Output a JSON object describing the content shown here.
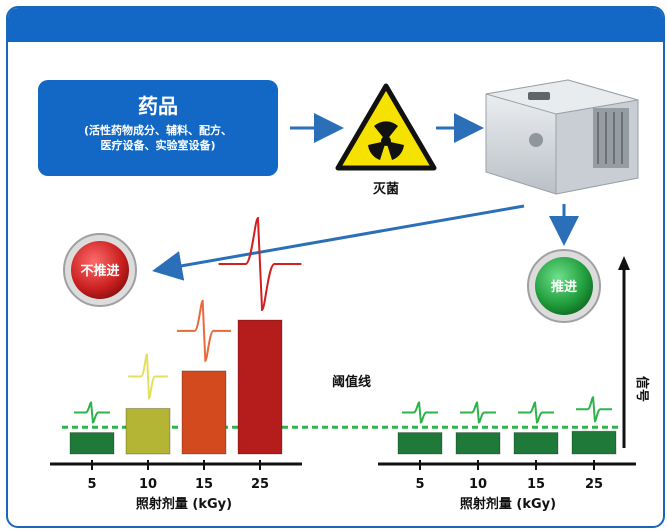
{
  "drug_box": {
    "title": "药品",
    "subtitle_line1": "(活性药物成分、辅料、配方、",
    "subtitle_line2": "医疗设备、实验室设备)"
  },
  "sterilization_label": "灭菌",
  "no_advance_label": "不推进",
  "advance_label": "推进",
  "threshold_label": "阈值线",
  "signal_axis_label": "信号",
  "left_chart": {
    "xlabel": "照射剂量 (kGy)",
    "categories": [
      "5",
      "10",
      "15",
      "25"
    ],
    "values": [
      1.6,
      3.4,
      6.2,
      10.0
    ],
    "colors": [
      "#1f7a3a",
      "#b5b535",
      "#d24a1e",
      "#b51c1c"
    ]
  },
  "right_chart": {
    "xlabel": "照射剂量 (kGy)",
    "categories": [
      "5",
      "10",
      "15",
      "25"
    ],
    "values": [
      1.6,
      1.6,
      1.6,
      1.7
    ],
    "colors": [
      "#1f7a3a",
      "#1f7a3a",
      "#1f7a3a",
      "#1f7a3a"
    ]
  },
  "threshold_value": 2.0,
  "colors": {
    "brand_blue": "#1268c4",
    "threshold_green": "#2db34a",
    "red_button": "#c81e1e",
    "green_button": "#1e9a3a"
  }
}
